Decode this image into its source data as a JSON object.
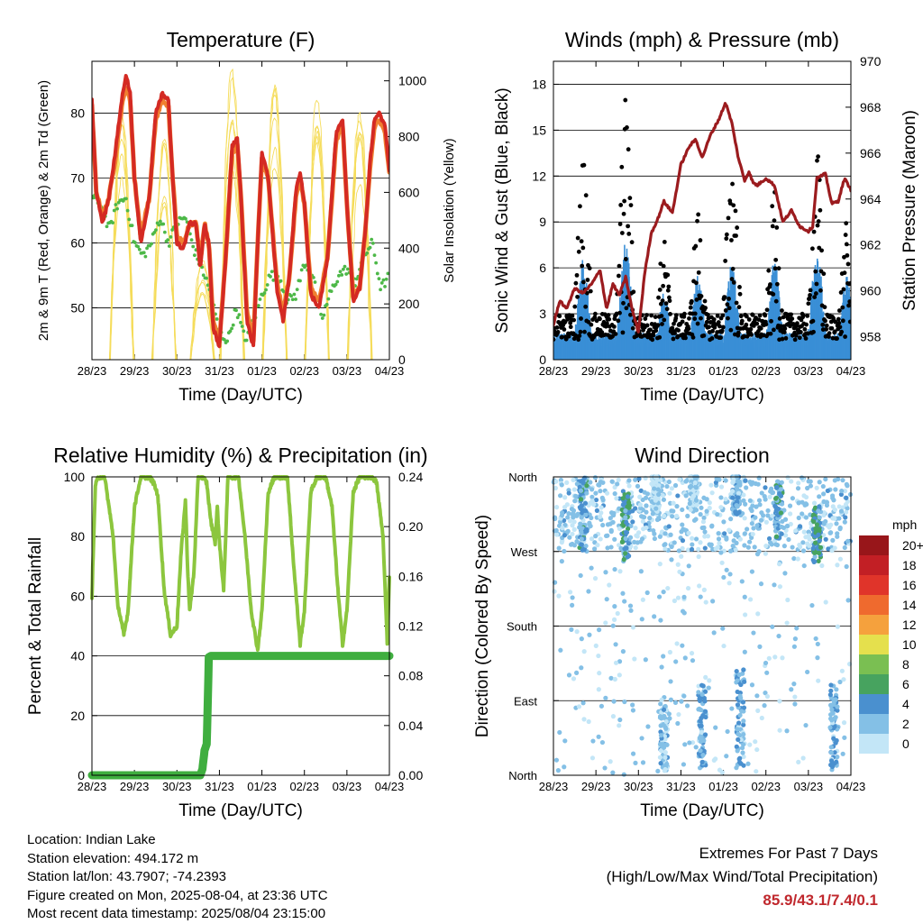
{
  "x_ticks": [
    "28/23",
    "29/23",
    "30/23",
    "31/23",
    "01/23",
    "02/23",
    "03/23",
    "04/23"
  ],
  "xlabel": "Time (Day/UTC)",
  "chart_data": [
    {
      "type": "line",
      "title": "Temperature (F)",
      "ylabel": "2m & 9m T (Red, Orange) & 2m Td (Green)",
      "y2label": "Solar Insolation (Yellow)",
      "ylim": [
        42,
        88
      ],
      "y_ticks": [
        50,
        60,
        70,
        80
      ],
      "y2lim": [
        0,
        1070
      ],
      "y2_ticks": [
        0,
        200,
        400,
        600,
        800,
        1000
      ],
      "colors": {
        "t2m": "#d42a23",
        "t9m": "#f07f30",
        "td": "#4db848",
        "solar": "#f5dc5a"
      },
      "series": [
        {
          "key": "t2m",
          "x": [
            0,
            0.1,
            0.25,
            0.4,
            0.55,
            0.7,
            0.8,
            0.9,
            1,
            1.15,
            1.35,
            1.5,
            1.65,
            1.8,
            1.9,
            2,
            2.15,
            2.3,
            2.45,
            2.55,
            2.65,
            2.75,
            2.85,
            3,
            3.15,
            3.3,
            3.42,
            3.5,
            3.65,
            3.8,
            3.9,
            4,
            4.15,
            4.35,
            4.5,
            4.65,
            4.8,
            4.9,
            5,
            5.15,
            5.35,
            5.55,
            5.65,
            5.75,
            5.9,
            6,
            6.15,
            6.3,
            6.45,
            6.55,
            6.65,
            6.75,
            6.9,
            7
          ],
          "values": [
            82,
            68,
            63,
            67,
            74,
            82,
            86,
            83,
            70,
            60,
            67,
            80,
            83,
            82,
            70,
            60,
            59,
            63,
            63,
            56,
            63,
            60,
            47,
            44,
            58,
            75,
            76,
            68,
            48,
            44,
            60,
            74,
            70,
            53,
            48,
            55,
            68,
            71,
            66,
            52,
            50,
            58,
            68,
            77,
            79,
            66,
            51,
            53,
            63,
            73,
            79,
            80,
            78,
            71
          ]
        },
        {
          "key": "t9m",
          "x": [
            0,
            0.1,
            0.25,
            0.4,
            0.55,
            0.7,
            0.8,
            0.9,
            1,
            1.15,
            1.35,
            1.5,
            1.65,
            1.8,
            1.9,
            2,
            2.15,
            2.3,
            2.45,
            2.55,
            2.65,
            2.75,
            2.85,
            3,
            3.15,
            3.3,
            3.42,
            3.5,
            3.65,
            3.8,
            3.9,
            4,
            4.15,
            4.35,
            4.5,
            4.65,
            4.8,
            4.9,
            5,
            5.15,
            5.35,
            5.55,
            5.65,
            5.75,
            5.9,
            6,
            6.15,
            6.3,
            6.45,
            6.55,
            6.65,
            6.75,
            6.9,
            7
          ],
          "values": [
            81,
            68,
            64,
            67,
            73,
            81,
            84,
            82,
            70,
            61,
            67,
            79,
            82,
            81,
            70,
            61,
            60,
            63,
            63,
            57,
            63,
            60,
            48,
            45,
            58,
            74,
            75,
            68,
            49,
            45,
            60,
            73,
            70,
            54,
            49,
            55,
            67,
            70,
            66,
            53,
            51,
            58,
            67,
            76,
            78,
            66,
            52,
            53,
            63,
            72,
            78,
            79,
            77,
            71
          ]
        },
        {
          "key": "td",
          "x": [
            0,
            0.2,
            0.4,
            0.6,
            0.8,
            1,
            1.2,
            1.4,
            1.6,
            1.8,
            2,
            2.2,
            2.4,
            2.6,
            2.8,
            3,
            3.2,
            3.4,
            3.6,
            3.8,
            4,
            4.2,
            4.4,
            4.6,
            4.8,
            5,
            5.2,
            5.4,
            5.6,
            5.8,
            6,
            6.2,
            6.4,
            6.6,
            6.8,
            7
          ],
          "values": [
            67,
            66,
            62,
            66,
            67,
            60,
            58,
            60,
            64,
            60,
            63,
            64,
            59,
            56,
            52,
            46,
            45,
            50,
            45,
            48,
            52,
            55,
            55,
            51,
            52,
            57,
            55,
            48,
            52,
            55,
            56,
            54,
            58,
            60,
            53,
            55
          ]
        },
        {
          "key": "solar",
          "peaks": [
            {
              "x": 0.7,
              "value": 1000
            },
            {
              "x": 1.7,
              "value": 900
            },
            {
              "x": 2.6,
              "value": 420
            },
            {
              "x": 3.3,
              "value": 1060
            },
            {
              "x": 4.3,
              "value": 1020
            },
            {
              "x": 5.3,
              "value": 980
            },
            {
              "x": 6.3,
              "value": 1000
            }
          ]
        }
      ]
    },
    {
      "type": "scatter",
      "title": "Winds (mph) & Pressure (mb)",
      "ylabel": "Sonic Wind & Gust (Blue, Black)",
      "y2label": "Station Pressure (Maroon)",
      "ylim": [
        0,
        19.5
      ],
      "y_ticks": [
        0,
        3,
        6,
        9,
        12,
        15,
        18
      ],
      "y2lim": [
        957,
        970
      ],
      "y2_ticks": [
        958,
        960,
        962,
        964,
        966,
        968,
        970
      ],
      "colors": {
        "wind": "#3a8fd6",
        "gust": "#000000",
        "pressure": "#9b1b1e"
      },
      "series": [
        {
          "key": "pressure",
          "x": [
            0,
            0.15,
            0.3,
            0.5,
            0.7,
            0.9,
            1.1,
            1.25,
            1.4,
            1.55,
            1.7,
            1.85,
            2,
            2.15,
            2.3,
            2.45,
            2.6,
            2.8,
            3,
            3.2,
            3.35,
            3.5,
            3.7,
            3.9,
            4.05,
            4.2,
            4.35,
            4.5,
            4.6,
            4.7,
            4.8,
            5,
            5.2,
            5.4,
            5.6,
            5.8,
            6,
            6.1,
            6.2,
            6.4,
            6.55,
            6.7,
            6.85,
            7
          ],
          "values": [
            958.5,
            959.6,
            959.2,
            960.1,
            959.9,
            960.3,
            960.9,
            959.2,
            960.3,
            959.8,
            960.6,
            959.2,
            958.2,
            960.8,
            962.5,
            963.1,
            963.9,
            963.4,
            965.5,
            966.3,
            966.6,
            965.8,
            966.8,
            967.5,
            968.2,
            967.3,
            965.8,
            964.8,
            965.2,
            964.7,
            964.6,
            964.9,
            964.6,
            963.0,
            963.5,
            962.8,
            962.6,
            962.8,
            964.9,
            965.1,
            963.8,
            963.9,
            964.9,
            964.4
          ]
        },
        {
          "key": "wind",
          "diurnal_peaks": [
            {
              "x": 0.7,
              "value": 6
            },
            {
              "x": 1.7,
              "value": 7
            },
            {
              "x": 2.6,
              "value": 4
            },
            {
              "x": 3.4,
              "value": 5
            },
            {
              "x": 4.2,
              "value": 6
            },
            {
              "x": 5.2,
              "value": 6
            },
            {
              "x": 6.2,
              "value": 7
            },
            {
              "x": 6.9,
              "value": 5
            }
          ]
        },
        {
          "key": "gust",
          "diurnal_peaks": [
            {
              "x": 0.7,
              "value": 14
            },
            {
              "x": 1.7,
              "value": 17.5
            },
            {
              "x": 2.6,
              "value": 8
            },
            {
              "x": 3.4,
              "value": 10
            },
            {
              "x": 4.2,
              "value": 15
            },
            {
              "x": 5.2,
              "value": 11
            },
            {
              "x": 6.2,
              "value": 14
            },
            {
              "x": 6.9,
              "value": 9
            }
          ]
        }
      ]
    },
    {
      "type": "line",
      "title": "Relative Humidity (%) & Precipitation (in)",
      "ylabel": "Percent & Total Rainfall",
      "ylim": [
        0,
        100
      ],
      "y_ticks": [
        0,
        20,
        40,
        60,
        80,
        100
      ],
      "y2lim": [
        0,
        0.24
      ],
      "y2_ticks": [
        "0.00",
        "0.04",
        "0.08",
        "0.12",
        "0.16",
        "0.20",
        "0.24"
      ],
      "colors": {
        "rh": "#8cc63e",
        "precip": "#3fae3f"
      },
      "series": [
        {
          "key": "rh",
          "x": [
            0,
            0.08,
            0.15,
            0.3,
            0.5,
            0.6,
            0.75,
            0.85,
            1.0,
            1.15,
            1.25,
            1.35,
            1.45,
            1.55,
            1.7,
            1.85,
            2.0,
            2.1,
            2.2,
            2.25,
            2.3,
            2.4,
            2.5,
            2.6,
            2.7,
            2.8,
            2.9,
            2.95,
            3.0,
            3.1,
            3.2,
            3.3,
            3.45,
            3.6,
            3.75,
            3.9,
            4.0,
            4.15,
            4.3,
            4.45,
            4.6,
            4.75,
            4.9,
            5.0,
            5.15,
            5.3,
            5.5,
            5.65,
            5.8,
            5.9,
            6.0,
            6.15,
            6.3,
            6.5,
            6.6,
            6.7,
            6.85,
            6.95,
            7.0
          ],
          "values": [
            60,
            97,
            100,
            100,
            80,
            58,
            47,
            55,
            90,
            100,
            100,
            100,
            98,
            94,
            62,
            47,
            50,
            75,
            92,
            70,
            55,
            68,
            100,
            100,
            98,
            85,
            78,
            90,
            78,
            62,
            100,
            100,
            100,
            80,
            55,
            42,
            55,
            95,
            100,
            100,
            100,
            70,
            44,
            55,
            95,
            100,
            100,
            90,
            60,
            44,
            55,
            95,
            100,
            100,
            100,
            98,
            80,
            44,
            67
          ]
        },
        {
          "key": "precip",
          "x": [
            0,
            2.55,
            2.6,
            2.65,
            2.7,
            2.72,
            2.75,
            2.8,
            7
          ],
          "values": [
            0,
            0,
            0.005,
            0.02,
            0.025,
            0.05,
            0.095,
            0.096,
            0.096
          ]
        }
      ]
    },
    {
      "type": "scatter",
      "title": "Wind Direction",
      "ylabel": "Direction (Colored By Speed)",
      "y_tick_labels": [
        "North",
        "East",
        "South",
        "West",
        "North"
      ],
      "ylim": [
        0,
        360
      ],
      "colorbar_title": "mph",
      "colorbar_labels": [
        "0",
        "2",
        "4",
        "6",
        "8",
        "10",
        "12",
        "14",
        "16",
        "18",
        "20+"
      ],
      "colorbar_colors": [
        "#c3e6f7",
        "#84c0e6",
        "#4a90cf",
        "#47a35f",
        "#7abf52",
        "#e5e04d",
        "#f5a13d",
        "#ef6a2e",
        "#e0342a",
        "#c21f25",
        "#98161a"
      ],
      "clusters": [
        {
          "x": 0.7,
          "dir_center": 315,
          "spread": 45,
          "speed": 4
        },
        {
          "x": 1.7,
          "dir_center": 300,
          "spread": 40,
          "speed": 5
        },
        {
          "x": 2.4,
          "dir_center": 340,
          "spread": 25,
          "speed": 1
        },
        {
          "x": 3.3,
          "dir_center": 345,
          "spread": 20,
          "speed": 1
        },
        {
          "x": 4.3,
          "dir_center": 340,
          "spread": 25,
          "speed": 3
        },
        {
          "x": 5.3,
          "dir_center": 320,
          "spread": 35,
          "speed": 4
        },
        {
          "x": 6.2,
          "dir_center": 290,
          "spread": 35,
          "speed": 5
        },
        {
          "x": 2.6,
          "dir_center": 50,
          "spread": 45,
          "speed": 2
        },
        {
          "x": 3.5,
          "dir_center": 60,
          "spread": 50,
          "speed": 3
        },
        {
          "x": 4.4,
          "dir_center": 70,
          "spread": 60,
          "speed": 3
        },
        {
          "x": 6.6,
          "dir_center": 60,
          "spread": 50,
          "speed": 3
        }
      ]
    }
  ],
  "station": {
    "location": "Location: Indian Lake",
    "elevation": "Station elevation: 494.172 m",
    "latlon": "Station lat/lon: 43.7907; -74.2393",
    "created": "Figure created on Mon, 2025-08-04, at 23:36 UTC",
    "timestamp": "Most recent data timestamp: 2025/08/04 23:15:00"
  },
  "extremes": {
    "title": "Extremes For Past 7 Days",
    "subtitle": "(High/Low/Max Wind/Total Precipitation)",
    "values": "85.9/43.1/7.4/0.1"
  }
}
